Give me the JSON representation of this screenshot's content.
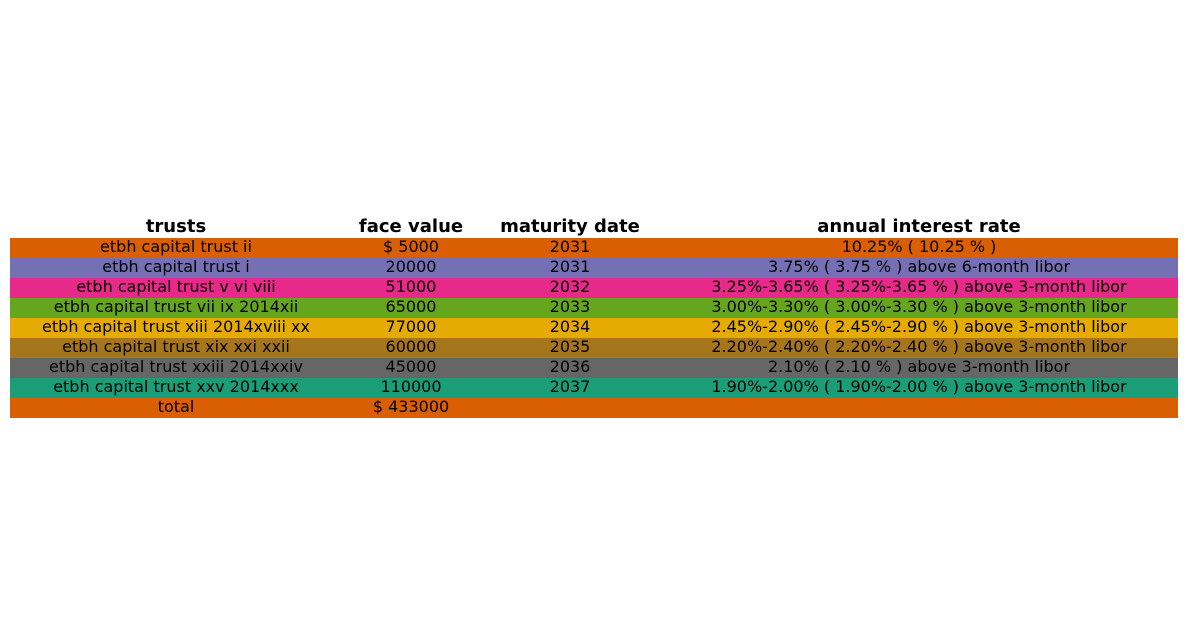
{
  "chart_data": {
    "type": "table",
    "columns": [
      "trusts",
      "face value",
      "maturity date",
      "annual interest rate"
    ],
    "rows": [
      {
        "cells": [
          "etbh capital trust ii",
          "$ 5000",
          "2031",
          "10.25% ( 10.25 % )"
        ],
        "color": "#d95f02"
      },
      {
        "cells": [
          "etbh capital trust i",
          "20000",
          "2031",
          "3.75% ( 3.75 % ) above 6-month libor"
        ],
        "color": "#7570b3"
      },
      {
        "cells": [
          "etbh capital trust v vi viii",
          "51000",
          "2032",
          "3.25%-3.65% ( 3.25%-3.65 % ) above 3-month libor"
        ],
        "color": "#e7298a"
      },
      {
        "cells": [
          "etbh capital trust vii ix 2014xii",
          "65000",
          "2033",
          "3.00%-3.30% ( 3.00%-3.30 % ) above 3-month libor"
        ],
        "color": "#66a61e"
      },
      {
        "cells": [
          "etbh capital trust xiii 2014xviii xx",
          "77000",
          "2034",
          "2.45%-2.90% ( 2.45%-2.90 % ) above 3-month libor"
        ],
        "color": "#e6ab02"
      },
      {
        "cells": [
          "etbh capital trust xix xxi xxii",
          "60000",
          "2035",
          "2.20%-2.40% ( 2.20%-2.40 % ) above 3-month libor"
        ],
        "color": "#a6761d"
      },
      {
        "cells": [
          "etbh capital trust xxiii 2014xxiv",
          "45000",
          "2036",
          "2.10% ( 2.10 % ) above 3-month libor"
        ],
        "color": "#666666"
      },
      {
        "cells": [
          "etbh capital trust xxv 2014xxx",
          "110000",
          "2037",
          "1.90%-2.00% ( 1.90%-2.00 % ) above 3-month libor"
        ],
        "color": "#1b9e77"
      },
      {
        "cells": [
          "total",
          "$ 433000",
          "",
          ""
        ],
        "color": "#d95f02"
      }
    ]
  }
}
